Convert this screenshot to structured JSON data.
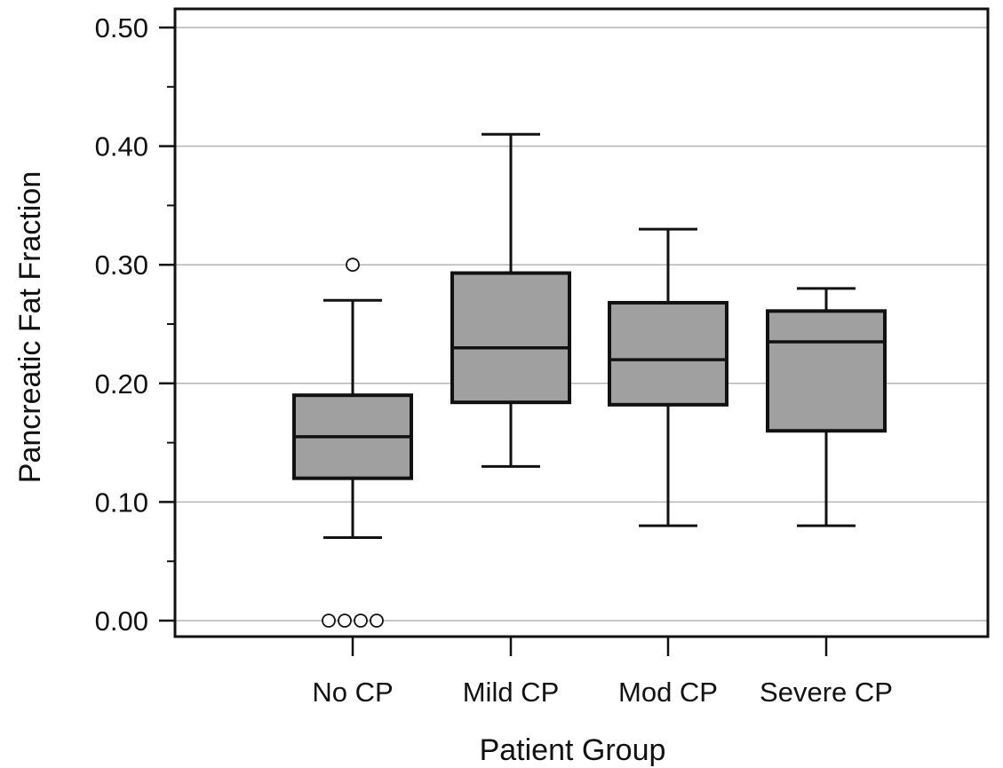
{
  "chart_data": {
    "type": "boxplot",
    "title": "",
    "xlabel": "Patient Group",
    "ylabel": "Pancreatic Fat Fraction",
    "ylim": [
      0.0,
      0.5
    ],
    "y_ticks": [
      0.0,
      0.1,
      0.2,
      0.3,
      0.4,
      0.5
    ],
    "y_tick_labels": [
      "0.00",
      "0.10",
      "0.20",
      "0.30",
      "0.40",
      "0.50"
    ],
    "y_minor_step": 0.05,
    "grid": "horizontal major gridlines",
    "legend": "none",
    "colors": {
      "box_fill": "#a0a0a0",
      "outline": "#111111",
      "grid": "#b4b4b4"
    },
    "categories": [
      "No CP",
      "Mild CP",
      "Mod CP",
      "Severe CP"
    ],
    "boxes": [
      {
        "label": "No CP",
        "whisker_low": 0.07,
        "q1": 0.12,
        "median": 0.155,
        "q3": 0.19,
        "whisker_high": 0.27,
        "outliers": [
          0.3,
          0.0,
          0.0,
          0.0,
          0.0
        ]
      },
      {
        "label": "Mild CP",
        "whisker_low": 0.13,
        "q1": 0.184,
        "median": 0.23,
        "q3": 0.293,
        "whisker_high": 0.41,
        "outliers": []
      },
      {
        "label": "Mod CP",
        "whisker_low": 0.08,
        "q1": 0.182,
        "median": 0.22,
        "q3": 0.268,
        "whisker_high": 0.33,
        "outliers": []
      },
      {
        "label": "Severe CP",
        "whisker_low": 0.08,
        "q1": 0.16,
        "median": 0.235,
        "q3": 0.261,
        "whisker_high": 0.28,
        "outliers": []
      }
    ]
  }
}
